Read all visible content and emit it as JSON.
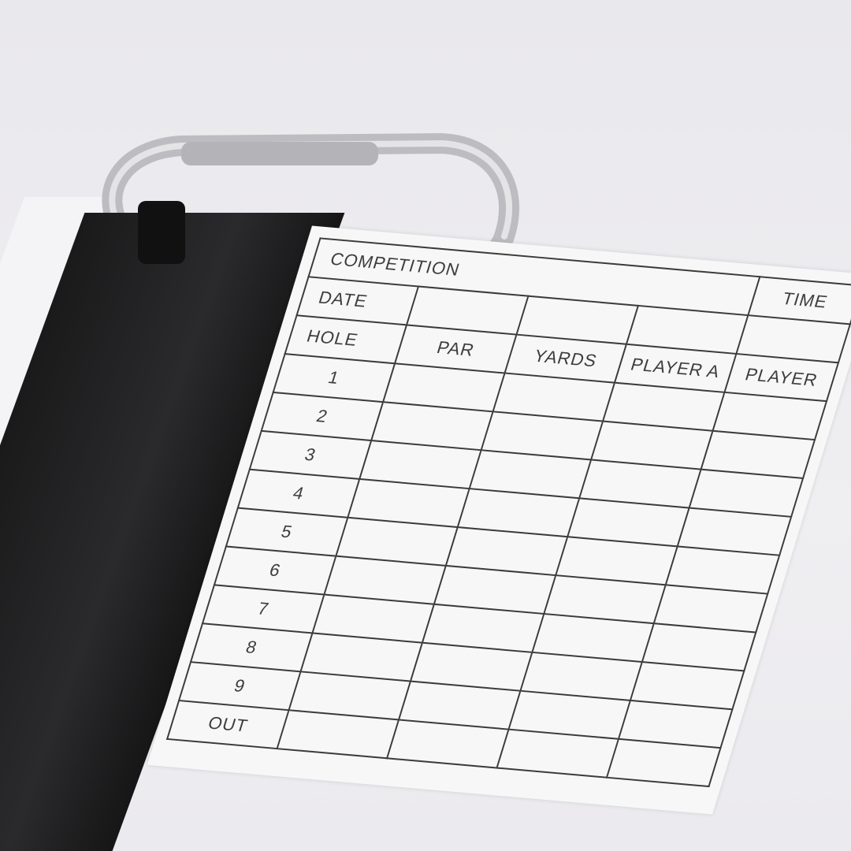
{
  "scorecard": {
    "competition_label": "COMPETITION",
    "date_label": "DATE",
    "hole_label": "HOLE",
    "columns": [
      "PAR",
      "YARDS",
      "PLAYER A",
      "PLAYER"
    ],
    "top_right_label": "TIME",
    "holes": [
      "1",
      "2",
      "3",
      "4",
      "5",
      "6",
      "7",
      "8",
      "9"
    ],
    "out_label": "OUT"
  },
  "colors": {
    "background": "#ecebef",
    "card": "#f7f7f8",
    "lines": "#3b3b3b",
    "pouch": "#1e1e20",
    "carabiner": "#c9c9cc"
  }
}
